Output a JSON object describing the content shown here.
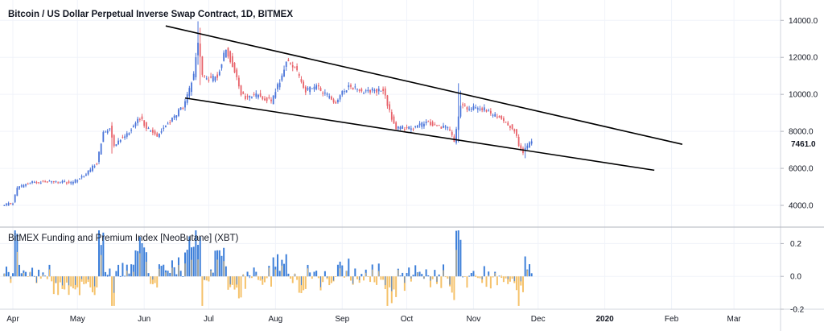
{
  "chart_data": {
    "type": "candlestick",
    "title": "Bitcoin / US Dollar Perpetual Inverse Swap Contract, 1D, BITMEX",
    "colors": {
      "up": "#4a74d9",
      "down": "#e8636b",
      "funding_pos": "#3d7fd9",
      "funding_neg": "#f5c26b",
      "trendline": "#000000",
      "last_price_box": "#ffffff"
    },
    "x_tick_labels": [
      "Apr",
      "May",
      "Jun",
      "Jul",
      "Aug",
      "Sep",
      "Oct",
      "Nov",
      "Dec",
      "2020",
      "Feb",
      "Mar"
    ],
    "y_tick_labels": [
      "14000.0",
      "12000.0",
      "10000.0",
      "8000.0",
      "6000.0",
      "4000.0"
    ],
    "y_ticks": [
      14000,
      12000,
      10000,
      8000,
      6000,
      4000
    ],
    "ylim": [
      3000,
      15100
    ],
    "last_price_label": "7461.0",
    "last_price": 7461,
    "date_range": [
      "2019-03-28",
      "2019-11-28"
    ],
    "price_anchors": [
      [
        "2019-03-28",
        4000
      ],
      [
        "2019-04-01",
        4150
      ],
      [
        "2019-04-03",
        4950
      ],
      [
        "2019-04-10",
        5250
      ],
      [
        "2019-04-20",
        5300
      ],
      [
        "2019-04-28",
        5200
      ],
      [
        "2019-05-05",
        5700
      ],
      [
        "2019-05-10",
        6300
      ],
      [
        "2019-05-13",
        7900
      ],
      [
        "2019-05-16",
        8200
      ],
      [
        "2019-05-18",
        7300
      ],
      [
        "2019-05-25",
        8000
      ],
      [
        "2019-05-30",
        8700
      ],
      [
        "2019-06-03",
        8100
      ],
      [
        "2019-06-07",
        7800
      ],
      [
        "2019-06-15",
        8800
      ],
      [
        "2019-06-20",
        9500
      ],
      [
        "2019-06-24",
        11000
      ],
      [
        "2019-06-26",
        12900
      ],
      [
        "2019-06-28",
        11000
      ],
      [
        "2019-07-02",
        10800
      ],
      [
        "2019-07-05",
        11000
      ],
      [
        "2019-07-09",
        12500
      ],
      [
        "2019-07-12",
        11600
      ],
      [
        "2019-07-16",
        10000
      ],
      [
        "2019-07-18",
        9800
      ],
      [
        "2019-07-24",
        10000
      ],
      [
        "2019-07-30",
        9600
      ],
      [
        "2019-08-04",
        11000
      ],
      [
        "2019-08-06",
        11800
      ],
      [
        "2019-08-10",
        11500
      ],
      [
        "2019-08-15",
        10200
      ],
      [
        "2019-08-20",
        10400
      ],
      [
        "2019-08-29",
        9600
      ],
      [
        "2019-09-04",
        10500
      ],
      [
        "2019-09-10",
        10200
      ],
      [
        "2019-09-20",
        10200
      ],
      [
        "2019-09-24",
        8700
      ],
      [
        "2019-09-26",
        8200
      ],
      [
        "2019-10-05",
        8200
      ],
      [
        "2019-10-10",
        8500
      ],
      [
        "2019-10-15",
        8300
      ],
      [
        "2019-10-20",
        8200
      ],
      [
        "2019-10-23",
        7450
      ],
      [
        "2019-10-26",
        9400
      ],
      [
        "2019-10-30",
        9200
      ],
      [
        "2019-11-04",
        9300
      ],
      [
        "2019-11-10",
        8900
      ],
      [
        "2019-11-15",
        8600
      ],
      [
        "2019-11-20",
        8100
      ],
      [
        "2019-11-22",
        7200
      ],
      [
        "2019-11-24",
        6900
      ],
      [
        "2019-11-26",
        7200
      ],
      [
        "2019-11-28",
        7461
      ]
    ],
    "trendlines": [
      {
        "name": "upper",
        "from": [
          "2019-06-11",
          13700
        ],
        "to": [
          "2020-02-06",
          7300
        ]
      },
      {
        "name": "lower",
        "from": [
          "2019-06-20",
          9800
        ],
        "to": [
          "2020-01-24",
          5900
        ]
      }
    ],
    "indicator": {
      "title": "BitMEX Funding and Premium Index [NeoButane] (XBT)",
      "y_tick_labels": [
        "0.2",
        "0.0",
        "-0.2"
      ],
      "y_ticks": [
        0.2,
        0.0,
        -0.2
      ],
      "ylim": [
        -0.2,
        0.3
      ]
    }
  }
}
